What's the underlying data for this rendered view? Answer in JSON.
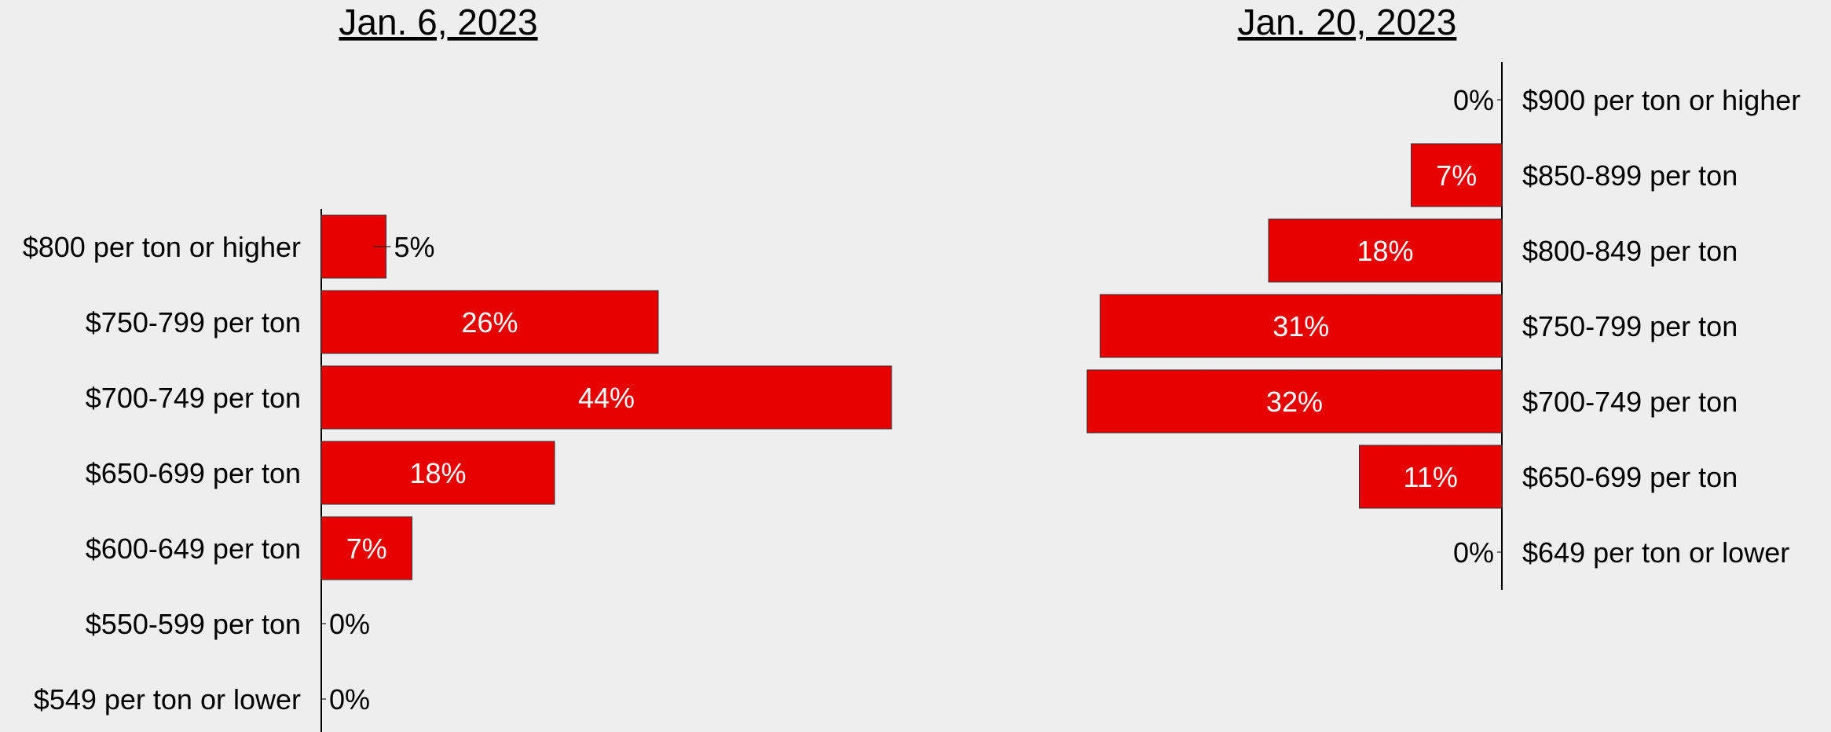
{
  "chart_data": [
    {
      "type": "bar",
      "orientation": "horizontal",
      "title": "Jan. 6, 2023",
      "categories": [
        "$800 per ton or higher",
        "$750-799 per ton",
        "$700-749 per ton",
        "$650-699 per ton",
        "$600-649 per ton",
        "$550-599 per ton",
        "$549 per ton or lower"
      ],
      "values": [
        5,
        26,
        44,
        18,
        7,
        0,
        0
      ],
      "value_labels": [
        "5%",
        "26%",
        "44%",
        "18%",
        "7%",
        "0%",
        "0%"
      ],
      "xlim": [
        0,
        44
      ],
      "bar_direction": "left-to-right",
      "category_labels_side": "left",
      "grid": false
    },
    {
      "type": "bar",
      "orientation": "horizontal",
      "title": "Jan. 20, 2023",
      "categories": [
        "$900 per ton or higher",
        "$850-899 per ton",
        "$800-849 per ton",
        "$750-799 per ton",
        "$700-749 per ton",
        "$650-699 per ton",
        "$649 per ton or lower"
      ],
      "values": [
        0,
        7,
        18,
        31,
        32,
        11,
        0
      ],
      "value_labels": [
        "0%",
        "7%",
        "18%",
        "31%",
        "32%",
        "11%",
        "0%"
      ],
      "xlim": [
        0,
        32
      ],
      "bar_direction": "right-to-left",
      "category_labels_side": "right",
      "grid": false
    }
  ],
  "colors": {
    "bar": "#e60000",
    "background": "#eeeeee",
    "text": "#000000",
    "inner_label": "#ffffff"
  }
}
